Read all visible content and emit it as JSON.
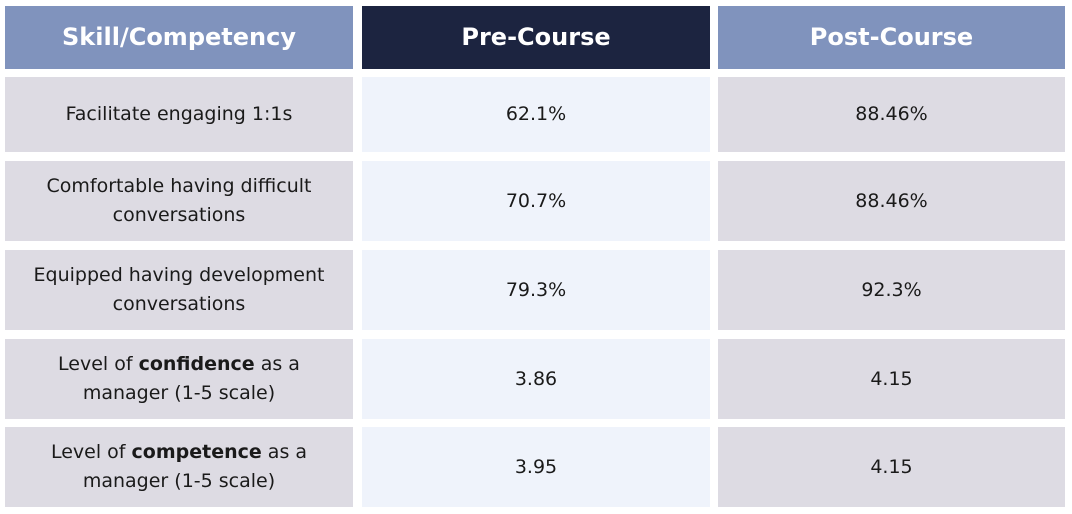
{
  "header": {
    "skill": "Skill/Competency",
    "pre": "Pre-Course",
    "post": "Post-Course"
  },
  "rows": [
    {
      "skill": "Facilitate engaging 1:1s",
      "pre": "62.1%",
      "post": "88.46%"
    },
    {
      "skill_line1": "Comfortable having difficult",
      "skill_line2": "conversations",
      "pre": "70.7%",
      "post": "88.46%"
    },
    {
      "skill_line1": "Equipped having development",
      "skill_line2": "conversations",
      "pre": "79.3%",
      "post": "92.3%"
    },
    {
      "skill_prefix": "Level of ",
      "skill_bold": "confidence",
      "skill_suffix": " as a",
      "skill_line2": "manager (1-5 scale)",
      "pre": "3.86",
      "post": "4.15"
    },
    {
      "skill_prefix": "Level of ",
      "skill_bold": "competence",
      "skill_suffix": " as a",
      "skill_line2": "manager (1-5 scale)",
      "pre": "3.95",
      "post": "4.15"
    }
  ],
  "colors": {
    "header_light": "#8093bd",
    "header_dark": "#1c2440",
    "cell_gray": "#dddbe3",
    "cell_light": "#eff3fb"
  }
}
